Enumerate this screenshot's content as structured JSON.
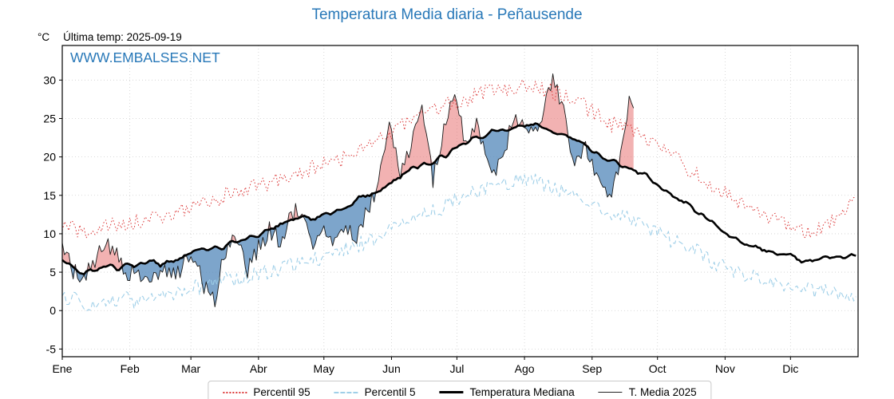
{
  "title": "Temperatura Media diaria - Peñausende",
  "unit_label": "°C",
  "last_temp_label": "Última temp: 2025-09-19",
  "watermark": "WWW.EMBALSES.NET",
  "colors": {
    "accent_blue": "#2878b8",
    "p95_red": "#dc3a3a",
    "p5_blue": "#9fcfe8",
    "median_black": "#000000",
    "t2025_black": "#1a1a1a",
    "fill_above": "#e87272",
    "fill_below": "#5d8fbe",
    "grid": "#cfcfcf"
  },
  "legend": {
    "items": [
      {
        "label": "Percentil 95"
      },
      {
        "label": "Percentil 5"
      },
      {
        "label": "Temperatura Mediana"
      },
      {
        "label": "T. Media 2025"
      }
    ]
  },
  "chart_data": {
    "type": "line",
    "title": "Temperatura Media diaria - Peñausende",
    "xlabel": "",
    "ylabel": "°C",
    "ylim": [
      -6,
      34.5
    ],
    "yticks": [
      -5,
      0,
      5,
      10,
      15,
      20,
      25,
      30
    ],
    "grid": true,
    "legend_position": "bottom",
    "days_in_year": 365,
    "sample_step_days": 5,
    "months": [
      {
        "label": "Ene",
        "start_day": 0
      },
      {
        "label": "Feb",
        "start_day": 31
      },
      {
        "label": "Mar",
        "start_day": 59
      },
      {
        "label": "Abr",
        "start_day": 90
      },
      {
        "label": "May",
        "start_day": 120
      },
      {
        "label": "Jun",
        "start_day": 151
      },
      {
        "label": "Jul",
        "start_day": 181
      },
      {
        "label": "Ago",
        "start_day": 212
      },
      {
        "label": "Sep",
        "start_day": 243
      },
      {
        "label": "Oct",
        "start_day": 273
      },
      {
        "label": "Nov",
        "start_day": 304
      },
      {
        "label": "Dic",
        "start_day": 334
      }
    ],
    "series": [
      {
        "name": "Percentil 95",
        "style": "dotted",
        "color": "#dc3a3a",
        "values": [
          11,
          10.5,
          10,
          10.5,
          11,
          11,
          11.5,
          11.5,
          12,
          12,
          12.5,
          13,
          13.5,
          14,
          14.5,
          15,
          15.5,
          16,
          16,
          16.5,
          17,
          17.5,
          18,
          18.5,
          19,
          19.5,
          20,
          21,
          21.5,
          22,
          23,
          24,
          25,
          25.5,
          26,
          26.5,
          27,
          27.5,
          28,
          28.5,
          28.5,
          29,
          29,
          29.5,
          29,
          28.5,
          28,
          27.5,
          26.5,
          25.5,
          24.5,
          24,
          23.5,
          23,
          22,
          21,
          20,
          19,
          18,
          17,
          16,
          15,
          14,
          13,
          12.5,
          12,
          11.5,
          11,
          10.5,
          10.5,
          11,
          12,
          14
        ]
      },
      {
        "name": "Percentil 5",
        "style": "dashed",
        "color": "#9fcfe8",
        "values": [
          2,
          1.5,
          1,
          0.5,
          1,
          1.5,
          1.5,
          1,
          1.5,
          2,
          2,
          2.5,
          3,
          3,
          3.5,
          4,
          4,
          4.5,
          5,
          5,
          5.5,
          6,
          6,
          6.5,
          7,
          7.5,
          8,
          8.5,
          9,
          9.5,
          10.5,
          11.5,
          12,
          12.5,
          13,
          13.5,
          14.5,
          15,
          15.5,
          16,
          16.5,
          16.5,
          17,
          17,
          16.5,
          16,
          15.5,
          15,
          14,
          13.5,
          13,
          12.5,
          12,
          11.5,
          10.5,
          10,
          9,
          8.5,
          8,
          7,
          6,
          5.5,
          5,
          4.5,
          4,
          3.5,
          3.5,
          3,
          3,
          2.5,
          2.5,
          2,
          2
        ]
      },
      {
        "name": "Temperatura Mediana",
        "style": "solid",
        "color": "#000000",
        "values": [
          6.5,
          5.5,
          5,
          5.5,
          6,
          5.5,
          6,
          6,
          6.5,
          6,
          6.5,
          7,
          7.5,
          8,
          8,
          8.5,
          9,
          9.5,
          10,
          10.5,
          11,
          11.5,
          12,
          12,
          12.5,
          13,
          13.5,
          14.5,
          15,
          15.5,
          16.5,
          17.5,
          18.5,
          19,
          19.5,
          20,
          21,
          22,
          22.5,
          23,
          23.5,
          23.5,
          24,
          24.5,
          24,
          23.5,
          23,
          22.5,
          21.5,
          20.5,
          19.5,
          19,
          18.5,
          18,
          17,
          16,
          15,
          14,
          13,
          12,
          11,
          10,
          9,
          8.5,
          8,
          7.5,
          7,
          7,
          6.5,
          6.5,
          7,
          7,
          7
        ]
      },
      {
        "name": "T. Media 2025",
        "style": "solid",
        "color": "#1a1a1a",
        "end_day": 262,
        "values": [
          8,
          5,
          4.5,
          6.5,
          9.5,
          7,
          5,
          4.5,
          4,
          5.5,
          4.5,
          5.5,
          7.5,
          3,
          1.5,
          8,
          9.5,
          5.5,
          8,
          10.5,
          9,
          12.5,
          13.5,
          9,
          10,
          9,
          10.5,
          9.5,
          13,
          16.5,
          23.5,
          18,
          21,
          27,
          17,
          24,
          28,
          21.5,
          24.5,
          19.5,
          18.5,
          23,
          25.5,
          23,
          24.5,
          30.5,
          26,
          19,
          21.5,
          17.5,
          14.5,
          18,
          27
        ]
      }
    ],
    "fills": {
      "above_median_color": "#e87272",
      "below_median_color": "#5d8fbe"
    }
  }
}
